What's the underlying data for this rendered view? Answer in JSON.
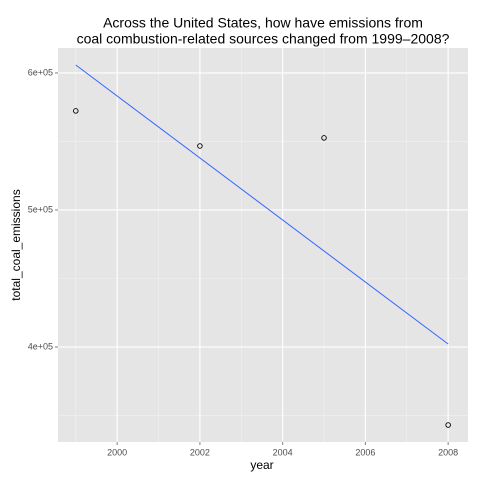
{
  "chart_data": {
    "type": "scatter",
    "title": [
      "Across the United States, how have emissions from",
      "coal combustion-related sources changed from 1999–2008?"
    ],
    "x_label": "year",
    "y_label": "total_coal_emissions",
    "series": [
      {
        "type": "scatter",
        "color": "#000000",
        "x": [
          1999,
          2002,
          2005,
          2008
        ],
        "values": [
          572300,
          546700,
          552600,
          343100
        ]
      },
      {
        "type": "line",
        "color": "#3366ff",
        "x": [
          1999,
          2008
        ],
        "values": [
          605800,
          402200
        ]
      }
    ],
    "xlim": [
      1998.57,
      2008.48
    ],
    "xticks": [
      2000,
      2002,
      2004,
      2006,
      2008
    ],
    "ylim": [
      330700,
      618200
    ],
    "yticks": [
      {
        "value": 400000,
        "label": "4e+05"
      },
      {
        "value": 500000,
        "label": "5e+05"
      },
      {
        "value": 600000,
        "label": "6e+05"
      }
    ],
    "x_minor_grid": [
      1999,
      2001,
      2003,
      2005,
      2007
    ],
    "y_minor_grid": [
      350000,
      450000,
      550000
    ],
    "grid": true
  }
}
